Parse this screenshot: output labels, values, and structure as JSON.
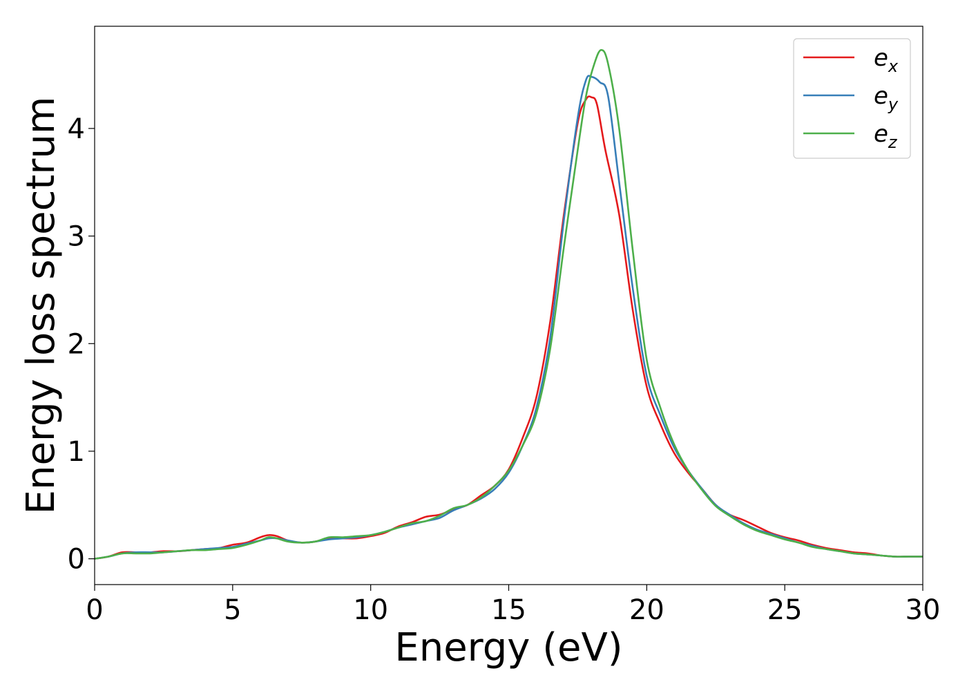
{
  "chart_data": {
    "type": "line",
    "title": "",
    "xlabel": "Energy (eV)",
    "ylabel": "Energy loss spectrum",
    "xlim": [
      0,
      30
    ],
    "ylim": [
      -0.24,
      4.95
    ],
    "xticks": [
      0,
      5,
      10,
      15,
      20,
      25,
      30
    ],
    "yticks": [
      0,
      1,
      2,
      3,
      4
    ],
    "grid": false,
    "legend_position": "top-right",
    "series": [
      {
        "name": "e_x",
        "legend_base": "e",
        "legend_sub": "x",
        "color": "#e41a1c",
        "points": [
          [
            0,
            0.0
          ],
          [
            0.5,
            0.02
          ],
          [
            1,
            0.06
          ],
          [
            1.5,
            0.06
          ],
          [
            2,
            0.06
          ],
          [
            2.5,
            0.07
          ],
          [
            3,
            0.07
          ],
          [
            3.5,
            0.08
          ],
          [
            4,
            0.09
          ],
          [
            4.5,
            0.1
          ],
          [
            5,
            0.13
          ],
          [
            5.5,
            0.15
          ],
          [
            6,
            0.2
          ],
          [
            6.3,
            0.22
          ],
          [
            6.6,
            0.21
          ],
          [
            7,
            0.17
          ],
          [
            7.5,
            0.15
          ],
          [
            8,
            0.16
          ],
          [
            8.5,
            0.19
          ],
          [
            9,
            0.19
          ],
          [
            9.5,
            0.19
          ],
          [
            10,
            0.21
          ],
          [
            10.5,
            0.24
          ],
          [
            11,
            0.3
          ],
          [
            11.5,
            0.34
          ],
          [
            12,
            0.39
          ],
          [
            12.5,
            0.41
          ],
          [
            13,
            0.46
          ],
          [
            13.5,
            0.5
          ],
          [
            14,
            0.59
          ],
          [
            14.5,
            0.68
          ],
          [
            15,
            0.83
          ],
          [
            15.5,
            1.12
          ],
          [
            16,
            1.5
          ],
          [
            16.5,
            2.2
          ],
          [
            17,
            3.2
          ],
          [
            17.5,
            4.05
          ],
          [
            17.8,
            4.27
          ],
          [
            18.0,
            4.29
          ],
          [
            18.2,
            4.22
          ],
          [
            18.5,
            3.8
          ],
          [
            19,
            3.2
          ],
          [
            19.5,
            2.3
          ],
          [
            20,
            1.6
          ],
          [
            20.5,
            1.25
          ],
          [
            21,
            0.98
          ],
          [
            21.5,
            0.8
          ],
          [
            22,
            0.65
          ],
          [
            22.5,
            0.5
          ],
          [
            23,
            0.41
          ],
          [
            23.5,
            0.36
          ],
          [
            24,
            0.3
          ],
          [
            24.5,
            0.24
          ],
          [
            25,
            0.2
          ],
          [
            25.5,
            0.17
          ],
          [
            26,
            0.13
          ],
          [
            26.5,
            0.1
          ],
          [
            27,
            0.08
          ],
          [
            27.5,
            0.06
          ],
          [
            28,
            0.05
          ],
          [
            28.5,
            0.03
          ],
          [
            29,
            0.02
          ],
          [
            29.5,
            0.02
          ],
          [
            30,
            0.02
          ]
        ]
      },
      {
        "name": "e_y",
        "legend_base": "e",
        "legend_sub": "y",
        "color": "#377eb8",
        "points": [
          [
            0,
            0.0
          ],
          [
            0.5,
            0.02
          ],
          [
            1,
            0.05
          ],
          [
            1.5,
            0.06
          ],
          [
            2,
            0.06
          ],
          [
            2.5,
            0.06
          ],
          [
            3,
            0.07
          ],
          [
            3.5,
            0.08
          ],
          [
            4,
            0.09
          ],
          [
            4.5,
            0.1
          ],
          [
            5,
            0.11
          ],
          [
            5.5,
            0.14
          ],
          [
            6,
            0.17
          ],
          [
            6.3,
            0.19
          ],
          [
            6.6,
            0.19
          ],
          [
            7,
            0.17
          ],
          [
            7.5,
            0.15
          ],
          [
            8,
            0.16
          ],
          [
            8.5,
            0.18
          ],
          [
            9,
            0.19
          ],
          [
            9.5,
            0.2
          ],
          [
            10,
            0.22
          ],
          [
            10.5,
            0.25
          ],
          [
            11,
            0.29
          ],
          [
            11.5,
            0.32
          ],
          [
            12,
            0.35
          ],
          [
            12.5,
            0.38
          ],
          [
            13,
            0.45
          ],
          [
            13.5,
            0.5
          ],
          [
            14,
            0.56
          ],
          [
            14.5,
            0.65
          ],
          [
            15,
            0.8
          ],
          [
            15.5,
            1.05
          ],
          [
            16,
            1.4
          ],
          [
            16.5,
            2.05
          ],
          [
            17,
            3.15
          ],
          [
            17.5,
            4.1
          ],
          [
            17.8,
            4.45
          ],
          [
            18.0,
            4.48
          ],
          [
            18.3,
            4.43
          ],
          [
            18.6,
            4.3
          ],
          [
            19,
            3.5
          ],
          [
            19.5,
            2.5
          ],
          [
            20,
            1.7
          ],
          [
            20.5,
            1.33
          ],
          [
            21,
            1.03
          ],
          [
            21.5,
            0.82
          ],
          [
            22,
            0.65
          ],
          [
            22.5,
            0.5
          ],
          [
            23,
            0.41
          ],
          [
            23.5,
            0.33
          ],
          [
            24,
            0.27
          ],
          [
            24.5,
            0.23
          ],
          [
            25,
            0.19
          ],
          [
            25.5,
            0.15
          ],
          [
            26,
            0.12
          ],
          [
            26.5,
            0.09
          ],
          [
            27,
            0.07
          ],
          [
            27.5,
            0.05
          ],
          [
            28,
            0.04
          ],
          [
            28.5,
            0.03
          ],
          [
            29,
            0.02
          ],
          [
            29.5,
            0.02
          ],
          [
            30,
            0.02
          ]
        ]
      },
      {
        "name": "e_z",
        "legend_base": "e",
        "legend_sub": "z",
        "color": "#4daf4a",
        "points": [
          [
            0,
            0.0
          ],
          [
            0.5,
            0.02
          ],
          [
            1,
            0.05
          ],
          [
            1.5,
            0.05
          ],
          [
            2,
            0.05
          ],
          [
            2.5,
            0.06
          ],
          [
            3,
            0.07
          ],
          [
            3.5,
            0.08
          ],
          [
            4,
            0.08
          ],
          [
            4.5,
            0.09
          ],
          [
            5,
            0.1
          ],
          [
            5.5,
            0.13
          ],
          [
            6,
            0.17
          ],
          [
            6.3,
            0.2
          ],
          [
            6.6,
            0.19
          ],
          [
            7,
            0.16
          ],
          [
            7.5,
            0.15
          ],
          [
            8,
            0.16
          ],
          [
            8.5,
            0.2
          ],
          [
            9,
            0.2
          ],
          [
            9.5,
            0.21
          ],
          [
            10,
            0.22
          ],
          [
            10.5,
            0.25
          ],
          [
            11,
            0.29
          ],
          [
            11.5,
            0.33
          ],
          [
            12,
            0.35
          ],
          [
            12.5,
            0.4
          ],
          [
            13,
            0.47
          ],
          [
            13.5,
            0.5
          ],
          [
            14,
            0.57
          ],
          [
            14.5,
            0.68
          ],
          [
            15,
            0.82
          ],
          [
            15.5,
            1.05
          ],
          [
            16,
            1.35
          ],
          [
            16.5,
            1.95
          ],
          [
            17,
            2.9
          ],
          [
            17.5,
            3.8
          ],
          [
            17.8,
            4.3
          ],
          [
            18.1,
            4.6
          ],
          [
            18.35,
            4.73
          ],
          [
            18.6,
            4.6
          ],
          [
            19,
            4.0
          ],
          [
            19.5,
            2.85
          ],
          [
            20,
            1.85
          ],
          [
            20.5,
            1.4
          ],
          [
            21,
            1.06
          ],
          [
            21.5,
            0.82
          ],
          [
            22,
            0.64
          ],
          [
            22.5,
            0.49
          ],
          [
            23,
            0.4
          ],
          [
            23.5,
            0.32
          ],
          [
            24,
            0.26
          ],
          [
            24.5,
            0.22
          ],
          [
            25,
            0.18
          ],
          [
            25.5,
            0.15
          ],
          [
            26,
            0.11
          ],
          [
            26.5,
            0.09
          ],
          [
            27,
            0.07
          ],
          [
            27.5,
            0.05
          ],
          [
            28,
            0.04
          ],
          [
            28.5,
            0.03
          ],
          [
            29,
            0.02
          ],
          [
            29.5,
            0.02
          ],
          [
            30,
            0.02
          ]
        ]
      }
    ]
  }
}
